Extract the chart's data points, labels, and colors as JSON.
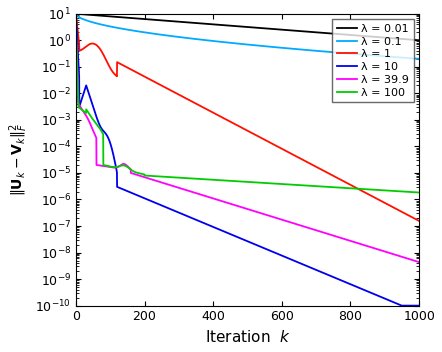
{
  "title": "",
  "xlabel": "Iteration  $k$",
  "ylabel": "$\\|\\mathbf{U}_k - \\mathbf{V}_k\\|_F^2$",
  "xlim": [
    0,
    1000
  ],
  "ylim_log": [
    -10,
    1
  ],
  "x_ticks": [
    0,
    200,
    400,
    600,
    800,
    1000
  ],
  "lambdas": [
    0.01,
    0.1,
    1,
    10,
    39.9,
    100
  ],
  "colors": {
    "0.01": "#000000",
    "0.1": "#00AAFF",
    "1": "#FF1100",
    "10": "#0000EE",
    "39.9": "#FF00FF",
    "100": "#00CC00"
  },
  "legend_labels": [
    "λ = 0.01",
    "λ = 0.1",
    "λ = 1",
    "λ = 10",
    "λ = 39.9",
    "λ = 100"
  ],
  "figsize": [
    4.42,
    3.52
  ],
  "dpi": 100
}
